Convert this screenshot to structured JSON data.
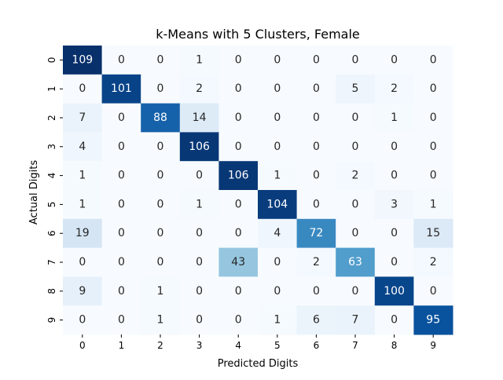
{
  "chart_data": {
    "type": "heatmap",
    "title": "k-Means with 5 Clusters, Female",
    "xlabel": "Predicted Digits",
    "ylabel": "Actual Digits",
    "x_categories": [
      "0",
      "1",
      "2",
      "3",
      "4",
      "5",
      "6",
      "7",
      "8",
      "9"
    ],
    "y_categories": [
      "0",
      "1",
      "2",
      "3",
      "4",
      "5",
      "6",
      "7",
      "8",
      "9"
    ],
    "matrix": [
      [
        109,
        0,
        0,
        1,
        0,
        0,
        0,
        0,
        0,
        0
      ],
      [
        0,
        101,
        0,
        2,
        0,
        0,
        0,
        5,
        2,
        0
      ],
      [
        7,
        0,
        88,
        14,
        0,
        0,
        0,
        0,
        1,
        0
      ],
      [
        4,
        0,
        0,
        106,
        0,
        0,
        0,
        0,
        0,
        0
      ],
      [
        1,
        0,
        0,
        0,
        106,
        1,
        0,
        2,
        0,
        0
      ],
      [
        1,
        0,
        0,
        1,
        0,
        104,
        0,
        0,
        3,
        1
      ],
      [
        19,
        0,
        0,
        0,
        0,
        4,
        72,
        0,
        0,
        15
      ],
      [
        0,
        0,
        0,
        0,
        43,
        0,
        2,
        63,
        0,
        2
      ],
      [
        9,
        0,
        1,
        0,
        0,
        0,
        0,
        0,
        100,
        0
      ],
      [
        0,
        0,
        1,
        0,
        0,
        1,
        6,
        7,
        0,
        95
      ]
    ],
    "colormap": "Blues",
    "value_range": [
      0,
      109
    ],
    "colors": {
      "low": "#f7fbff",
      "high": "#08306b",
      "text_dark": "#262626",
      "text_light": "#ffffff"
    },
    "colorbar": false,
    "grid": false
  }
}
